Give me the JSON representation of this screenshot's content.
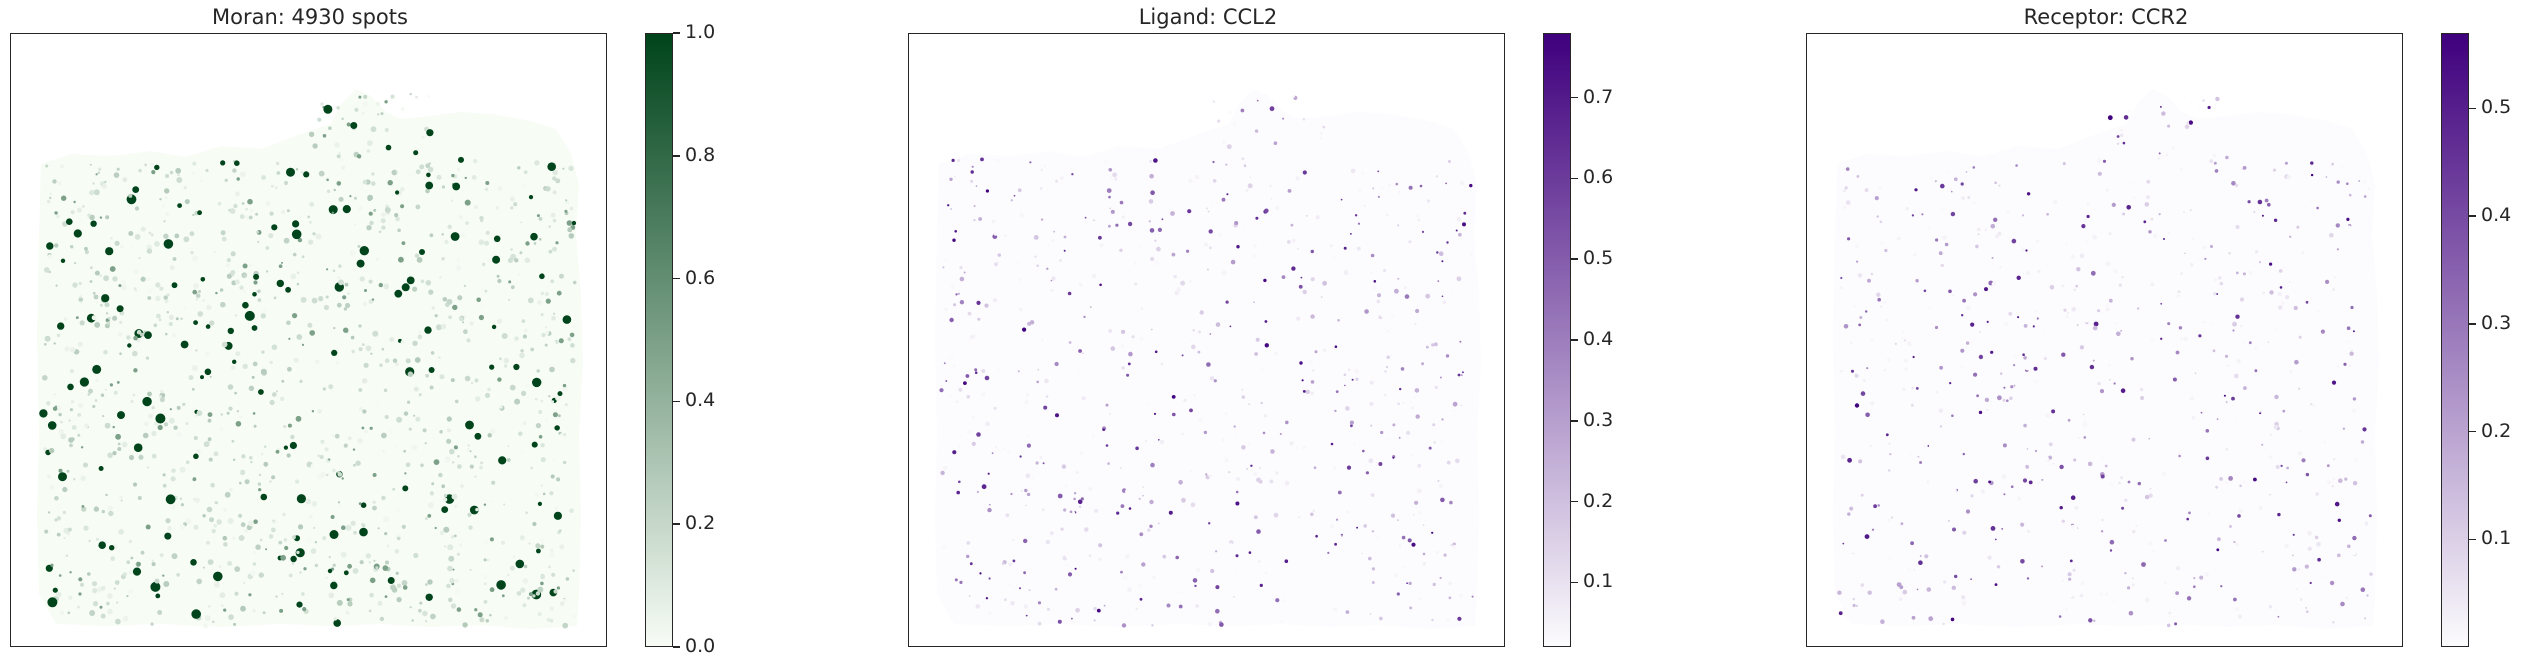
{
  "chart_data": [
    {
      "type": "heatmap",
      "title": "Moran: 4930 spots",
      "colormap": "Greens",
      "color_low": "#f7fcf5",
      "color_high": "#00441b",
      "colorbar": {
        "min": 0.0,
        "max": 1.0,
        "ticks": [
          "0.0",
          "0.2",
          "0.4",
          "0.6",
          "0.8",
          "1.0"
        ],
        "tick_values": [
          0.0,
          0.2,
          0.4,
          0.6,
          0.8,
          1.0
        ]
      },
      "spot_count": 4930,
      "axes": "hidden"
    },
    {
      "type": "heatmap",
      "title": "Ligand: CCL2",
      "colormap": "Purples",
      "color_low": "#fcfbfd",
      "color_high": "#3f007d",
      "colorbar": {
        "min": 0.02,
        "max": 0.78,
        "ticks": [
          "0.1",
          "0.2",
          "0.3",
          "0.4",
          "0.5",
          "0.6",
          "0.7"
        ],
        "tick_values": [
          0.1,
          0.2,
          0.3,
          0.4,
          0.5,
          0.6,
          0.7
        ]
      },
      "axes": "hidden"
    },
    {
      "type": "heatmap",
      "title": "Receptor: CCR2",
      "colormap": "Purples",
      "color_low": "#fcfbfd",
      "color_high": "#3f007d",
      "colorbar": {
        "min": 0.0,
        "max": 0.57,
        "ticks": [
          "0.1",
          "0.2",
          "0.3",
          "0.4",
          "0.5"
        ],
        "tick_values": [
          0.1,
          0.2,
          0.3,
          0.4,
          0.5
        ]
      },
      "axes": "hidden"
    }
  ]
}
